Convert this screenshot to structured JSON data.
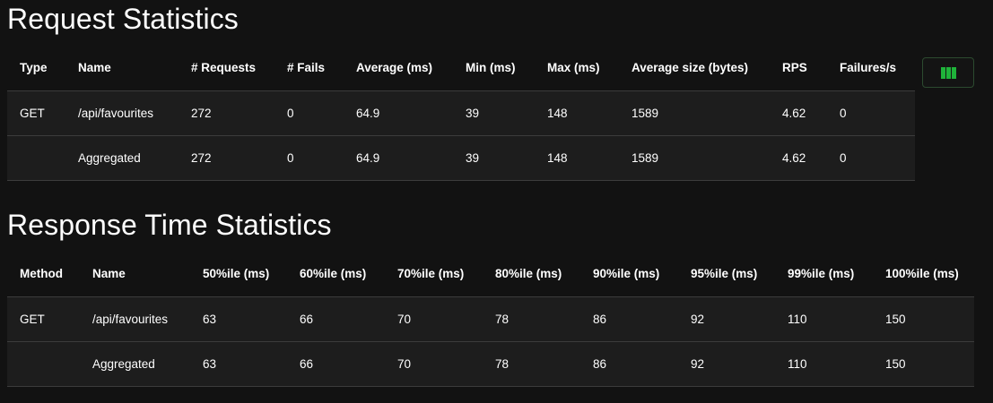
{
  "request_stats": {
    "title": "Request Statistics",
    "headers": [
      "Type",
      "Name",
      "# Requests",
      "# Fails",
      "Average (ms)",
      "Min (ms)",
      "Max (ms)",
      "Average size (bytes)",
      "RPS",
      "Failures/s"
    ],
    "rows": [
      {
        "type": "GET",
        "name": "/api/favourites",
        "requests": "272",
        "fails": "0",
        "avg": "64.9",
        "min": "39",
        "max": "148",
        "avg_size": "1589",
        "rps": "4.62",
        "failures_s": "0"
      },
      {
        "type": "",
        "name": "Aggregated",
        "requests": "272",
        "fails": "0",
        "avg": "64.9",
        "min": "39",
        "max": "148",
        "avg_size": "1589",
        "rps": "4.62",
        "failures_s": "0"
      }
    ],
    "column_selector": {
      "icon": "columns-icon",
      "color": "#1fb33a"
    }
  },
  "response_stats": {
    "title": "Response Time Statistics",
    "headers": [
      "Method",
      "Name",
      "50%ile (ms)",
      "60%ile (ms)",
      "70%ile (ms)",
      "80%ile (ms)",
      "90%ile (ms)",
      "95%ile (ms)",
      "99%ile (ms)",
      "100%ile (ms)"
    ],
    "rows": [
      {
        "method": "GET",
        "name": "/api/favourites",
        "p50": "63",
        "p60": "66",
        "p70": "70",
        "p80": "78",
        "p90": "86",
        "p95": "92",
        "p99": "110",
        "p100": "150"
      },
      {
        "method": "",
        "name": "Aggregated",
        "p50": "63",
        "p60": "66",
        "p70": "70",
        "p80": "78",
        "p90": "86",
        "p95": "92",
        "p99": "110",
        "p100": "150"
      }
    ]
  },
  "colors": {
    "background": "#121212",
    "row_background": "#1d1d1d",
    "accent": "#1fb33a"
  }
}
